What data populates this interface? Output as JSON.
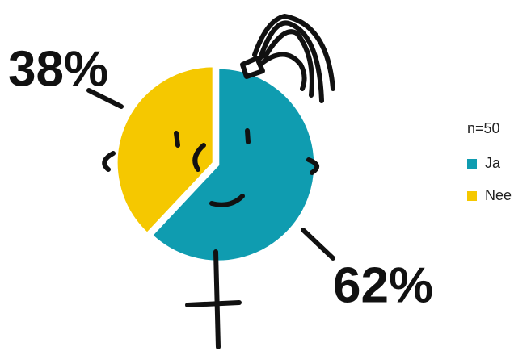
{
  "chart_data": {
    "type": "pie",
    "legend_title": "n=50",
    "categories": [
      "Ja",
      "Nee"
    ],
    "values": [
      62,
      38
    ],
    "value_labels": [
      "62%",
      "38%"
    ],
    "colors": [
      "#0f9cb0",
      "#f5c800"
    ]
  }
}
